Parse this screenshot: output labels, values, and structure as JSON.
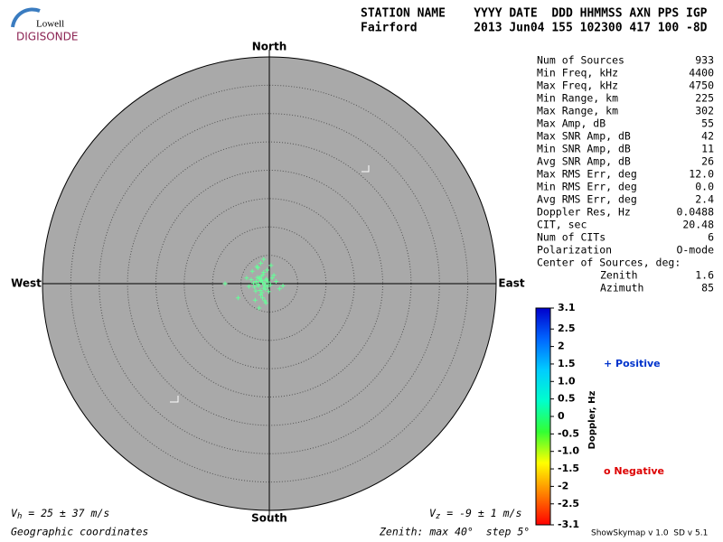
{
  "logo": {
    "top": "Lowell",
    "bottom": "DIGISONDE"
  },
  "header": {
    "labels": "STATION NAME    YYYY DATE  DDD HHMMSS AXN PPS IGP",
    "values": "Fairford        2013 Jun04 155 102300 417 100 -8D"
  },
  "chart_data": {
    "type": "scatter",
    "color": "#66ff99",
    "zenith_max": 40,
    "zenith_step": 5,
    "directions": {
      "north": "North",
      "south": "South",
      "east": "East",
      "west": "West"
    },
    "x": [
      -1.2,
      -0.8,
      -1.5,
      -2.0,
      -0.5,
      -1.0,
      -1.8,
      -2.3,
      -0.3,
      -1.4,
      -0.9,
      -1.6,
      -2.6,
      -0.6,
      -1.1,
      -1.9,
      -0.2,
      -2.1,
      -1.3,
      -0.7,
      -1.7,
      -2.8,
      0.2,
      -1.0,
      -1.5,
      -3.2,
      0.5,
      -2.4,
      -0.4,
      -1.2,
      -3.6,
      1.2,
      -2.0,
      -0.1,
      -4.0,
      1.8,
      -7.8,
      -1.5,
      -0.8,
      -2.5,
      0.8,
      -3.0,
      -1.0,
      0.3,
      -5.5,
      2.4,
      -1.8,
      -0.6,
      -2.2,
      -1.3
    ],
    "y": [
      0.2,
      -0.3,
      0.5,
      -0.1,
      0.8,
      -0.8,
      1.0,
      0.4,
      -0.5,
      1.3,
      0.0,
      -1.2,
      -0.6,
      0.6,
      1.6,
      -0.4,
      0.3,
      1.1,
      -1.6,
      -1.0,
      0.9,
      0.1,
      -0.2,
      2.0,
      -2.0,
      0.7,
      1.0,
      -1.3,
      2.4,
      -2.5,
      -0.5,
      0.4,
      2.8,
      -1.4,
      1.0,
      -0.9,
      0.0,
      3.6,
      -3.0,
      -2.9,
      1.5,
      2.2,
      4.3,
      3.2,
      -2.5,
      -0.4,
      -4.3,
      -3.4,
      3.0,
      0.6
    ]
  },
  "stats": [
    {
      "label": "Num of Sources",
      "value": "933"
    },
    {
      "label": "Min Freq, kHz",
      "value": "4400"
    },
    {
      "label": "Max Freq, kHz",
      "value": "4750"
    },
    {
      "label": "Min Range, km",
      "value": "225"
    },
    {
      "label": "Max Range, km",
      "value": "302"
    },
    {
      "label": "Max Amp, dB",
      "value": "55"
    },
    {
      "label": "Max SNR Amp, dB",
      "value": "42"
    },
    {
      "label": "Min SNR Amp, dB",
      "value": "11"
    },
    {
      "label": "Avg SNR Amp, dB",
      "value": "26"
    },
    {
      "label": "Max RMS Err, deg",
      "value": "12.0"
    },
    {
      "label": "Min RMS Err, deg",
      "value": "0.0"
    },
    {
      "label": "Avg RMS Err, deg",
      "value": "2.4"
    },
    {
      "label": "Doppler Res, Hz",
      "value": "0.0488"
    },
    {
      "label": "CIT, sec",
      "value": "20.48"
    },
    {
      "label": "Num of CITs",
      "value": "6"
    },
    {
      "label": "Polarization",
      "value": "O-mode"
    },
    {
      "label": "Center of Sources, deg:"
    },
    {
      "label": "Zenith",
      "value": "1.6"
    },
    {
      "label": "Azimuth",
      "value": "85"
    }
  ],
  "colorbar": {
    "title": "Doppler, Hz",
    "ylim": [
      -3.1,
      3.1
    ],
    "yticks": [
      3.1,
      2.5,
      2,
      1.5,
      {
        "value": 1,
        "label": "1.0"
      },
      0.5,
      0,
      -0.5,
      {
        "value": -1,
        "label": "-1.0"
      },
      -1.5,
      -2,
      -2.5,
      -3.1
    ],
    "colors": [
      "#ff0000",
      "#ff8000",
      "#ffff00",
      "#33ff33",
      "#00ffcc",
      "#00ccff",
      "#0066ff",
      "#0000cc"
    ]
  },
  "legend": {
    "positive": "+ Positive",
    "negative": "o Negative"
  },
  "footer": {
    "vh": {
      "symbol": "V",
      "sub": "h",
      "text": " = 25 ± 37 m/s"
    },
    "vz": {
      "symbol": "V",
      "sub": "z",
      "text": " = -9 ± 1 m/s"
    },
    "coords": "Geographic coordinates",
    "zenith": "Zenith: max 40°  step 5°",
    "version": "ShowSkymap v 1.0  SD v 5.1"
  }
}
